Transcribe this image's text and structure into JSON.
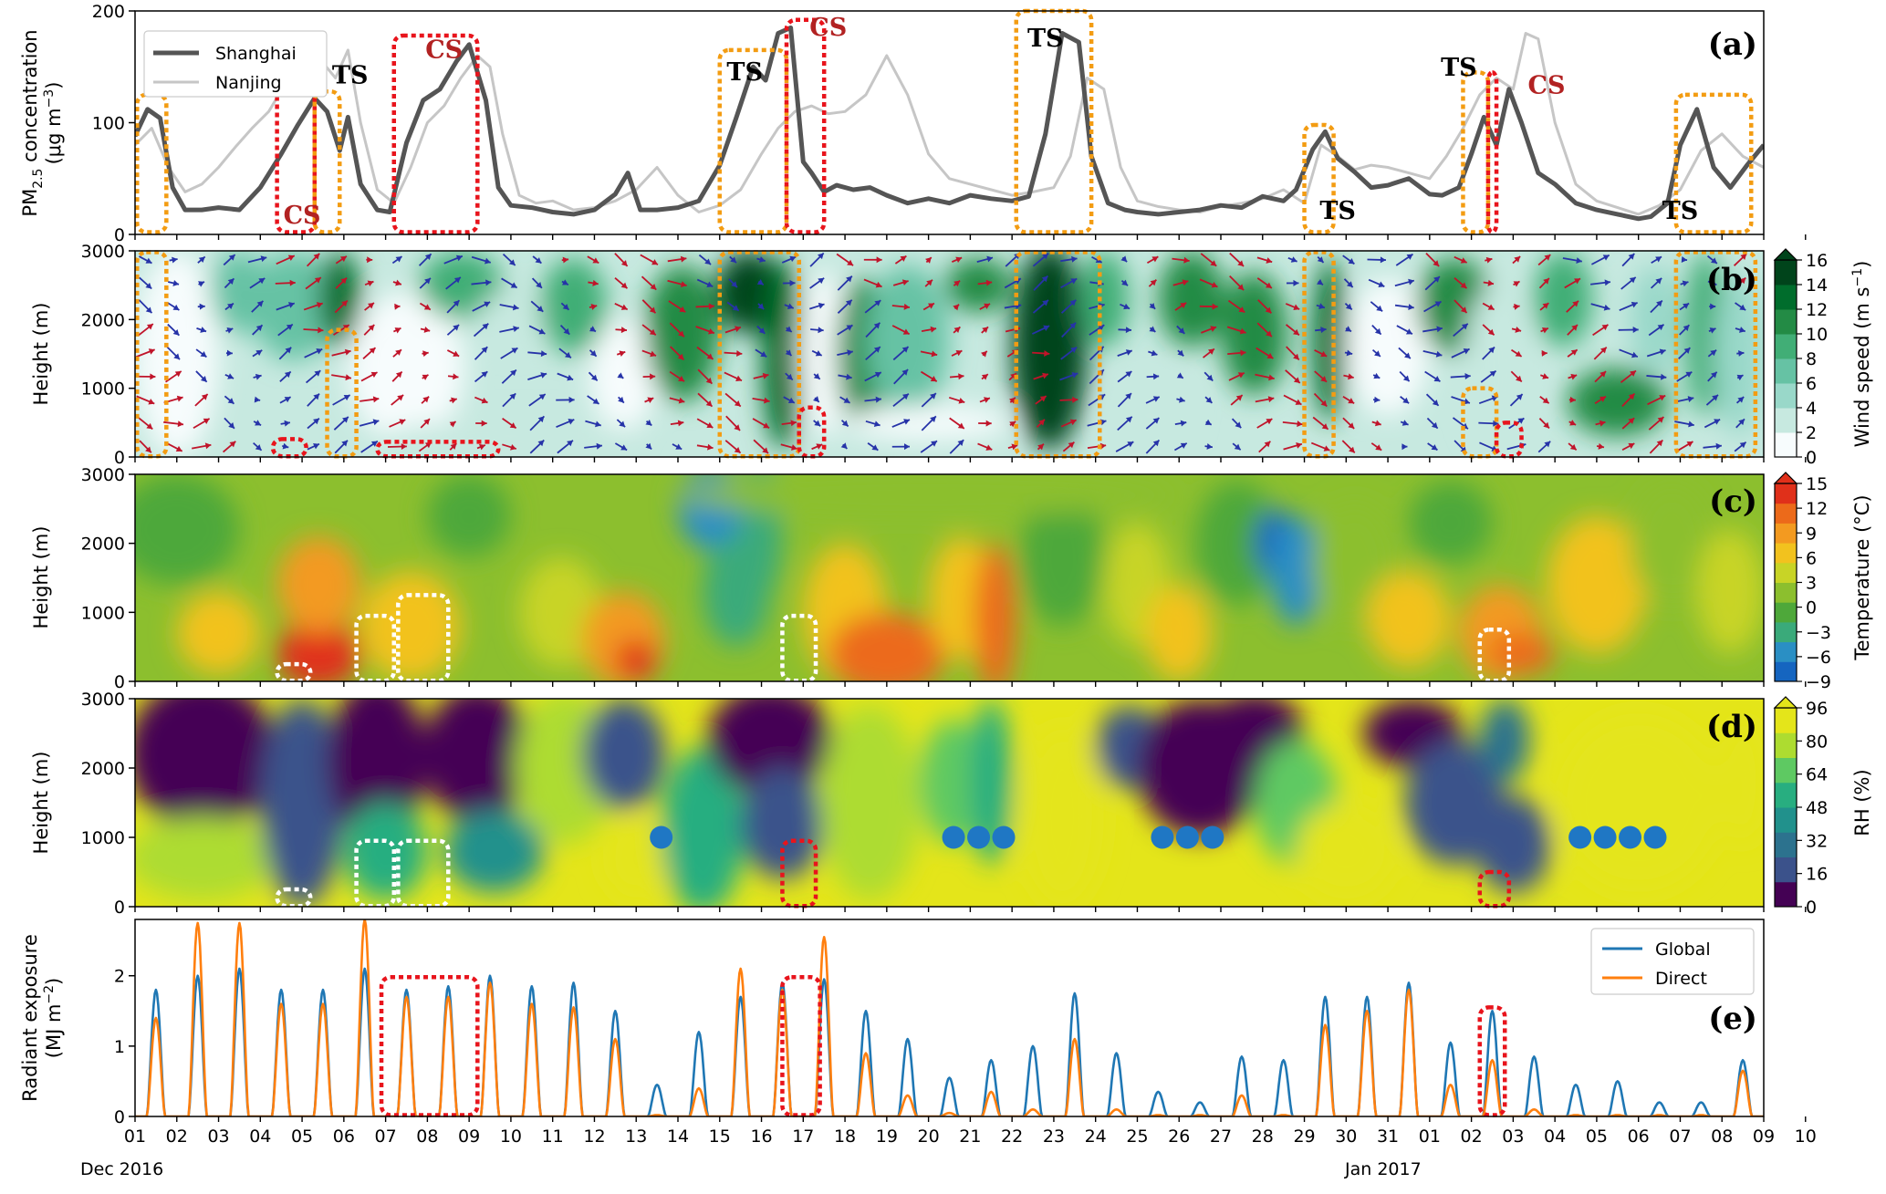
{
  "chart_data": [
    {
      "panel": "a",
      "panel_label": "(a)",
      "type": "line",
      "ylabel": "PM2.5 concentration (μg m−3)",
      "ylabel_line1": "PM",
      "ylabel_sub": "2.5",
      "ylabel_line1_rest": " concentration",
      "ylabel_line2": "(μg m",
      "ylabel_line2_sup": "−3",
      "ylabel_line2_end": ")",
      "ylim": [
        0,
        200
      ],
      "yticks": [
        "0",
        "100",
        "200"
      ],
      "legend_position": "top-left",
      "series": [
        {
          "name": "Shanghai",
          "color": "#555555",
          "x": [
            1.0,
            1.3,
            1.6,
            1.9,
            2.2,
            2.6,
            3.0,
            3.5,
            4.0,
            4.5,
            4.9,
            5.3,
            5.6,
            5.9,
            6.1,
            6.4,
            6.8,
            7.1,
            7.5,
            7.9,
            8.3,
            8.7,
            9.0,
            9.4,
            9.7,
            10.0,
            10.5,
            11.0,
            11.5,
            12.0,
            12.5,
            12.8,
            13.1,
            13.5,
            14.0,
            14.5,
            15.0,
            15.4,
            15.8,
            16.1,
            16.4,
            16.7,
            17.0,
            17.2,
            17.5,
            17.8,
            18.2,
            18.6,
            19.0,
            19.5,
            20.0,
            20.5,
            21.0,
            21.5,
            22.0,
            22.4,
            22.8,
            23.2,
            23.6,
            23.9,
            24.3,
            24.7,
            25.0,
            25.5,
            26.0,
            26.5,
            27.0,
            27.5,
            28.0,
            28.5,
            28.8,
            29.2,
            29.5,
            29.8,
            30.2,
            30.6,
            31.0,
            31.5,
            32.0,
            32.3,
            32.7,
            33.0,
            33.3,
            33.6,
            33.9,
            34.2,
            34.6,
            35.0,
            35.5,
            36.0,
            36.5,
            37.0,
            37.3,
            37.7,
            38.0,
            38.4,
            38.8,
            39.2,
            39.6,
            40.0
          ],
          "values": [
            88,
            112,
            104,
            42,
            22,
            22,
            24,
            22,
            42,
            72,
            98,
            122,
            110,
            75,
            105,
            45,
            22,
            20,
            82,
            120,
            130,
            155,
            170,
            120,
            42,
            26,
            24,
            20,
            18,
            22,
            36,
            55,
            22,
            22,
            24,
            30,
            62,
            105,
            150,
            138,
            180,
            185,
            65,
            55,
            38,
            44,
            40,
            42,
            35,
            28,
            32,
            28,
            35,
            32,
            30,
            34,
            90,
            180,
            172,
            70,
            28,
            22,
            20,
            18,
            20,
            22,
            26,
            24,
            34,
            30,
            40,
            76,
            92,
            68,
            56,
            42,
            44,
            50,
            36,
            35,
            42,
            72,
            105,
            80,
            130,
            100,
            55,
            45,
            28,
            22,
            18,
            14,
            16,
            28,
            80,
            112,
            60,
            42,
            62,
            80
          ]
        },
        {
          "name": "Nanjing",
          "color": "#c6c6c6",
          "x": [
            1.0,
            1.4,
            1.8,
            2.2,
            2.6,
            3.0,
            3.4,
            3.8,
            4.2,
            4.6,
            5.0,
            5.4,
            5.8,
            6.1,
            6.4,
            6.8,
            7.2,
            7.6,
            8.0,
            8.4,
            8.8,
            9.2,
            9.5,
            9.8,
            10.2,
            10.6,
            11.0,
            11.5,
            12.0,
            12.5,
            13.0,
            13.5,
            14.0,
            14.5,
            15.0,
            15.5,
            16.0,
            16.4,
            16.8,
            17.2,
            17.6,
            18.0,
            18.5,
            19.0,
            19.5,
            20.0,
            20.5,
            21.0,
            21.5,
            22.0,
            22.5,
            23.0,
            23.4,
            23.8,
            24.2,
            24.6,
            25.0,
            25.5,
            26.0,
            26.5,
            27.0,
            27.5,
            28.0,
            28.5,
            29.0,
            29.4,
            29.8,
            30.2,
            30.6,
            31.0,
            31.5,
            32.0,
            32.4,
            32.8,
            33.2,
            33.6,
            34.0,
            34.3,
            34.6,
            35.0,
            35.5,
            36.0,
            36.5,
            37.0,
            37.5,
            38.0,
            38.5,
            39.0,
            39.5,
            40.0
          ],
          "values": [
            80,
            95,
            60,
            38,
            45,
            60,
            78,
            95,
            110,
            135,
            150,
            158,
            140,
            165,
            100,
            40,
            28,
            60,
            100,
            115,
            140,
            160,
            150,
            90,
            35,
            28,
            30,
            22,
            24,
            30,
            40,
            60,
            35,
            20,
            26,
            40,
            72,
            95,
            110,
            115,
            108,
            110,
            125,
            160,
            125,
            72,
            50,
            45,
            40,
            35,
            38,
            42,
            70,
            140,
            130,
            60,
            30,
            25,
            22,
            20,
            25,
            28,
            32,
            40,
            28,
            80,
            70,
            58,
            62,
            60,
            55,
            50,
            70,
            95,
            125,
            140,
            130,
            180,
            175,
            100,
            45,
            30,
            24,
            18,
            26,
            40,
            75,
            90,
            70,
            60
          ]
        }
      ],
      "annotations": [
        {
          "text": "TS",
          "x": 1.65,
          "y": 133,
          "color": "#000000"
        },
        {
          "text": "CS",
          "x": 5.0,
          "y": 10,
          "color": "#b22222"
        },
        {
          "text": "TS",
          "x": 6.15,
          "y": 135,
          "color": "#000000"
        },
        {
          "text": "CS",
          "x": 8.4,
          "y": 158,
          "color": "#b22222"
        },
        {
          "text": "TS",
          "x": 15.6,
          "y": 138,
          "color": "#000000"
        },
        {
          "text": "CS",
          "x": 17.6,
          "y": 178,
          "color": "#b22222"
        },
        {
          "text": "TS",
          "x": 22.8,
          "y": 168,
          "color": "#000000"
        },
        {
          "text": "TS",
          "x": 29.8,
          "y": 14,
          "color": "#000000"
        },
        {
          "text": "TS",
          "x": 32.7,
          "y": 142,
          "color": "#000000"
        },
        {
          "text": "CS",
          "x": 34.8,
          "y": 126,
          "color": "#b22222"
        },
        {
          "text": "TS",
          "x": 38.0,
          "y": 14,
          "color": "#000000"
        }
      ]
    },
    {
      "panel": "b",
      "panel_label": "(b)",
      "type": "heatmap",
      "ylabel": "Height (m)",
      "ylim": [
        0,
        3000
      ],
      "yticks": [
        "0",
        "1000",
        "2000",
        "3000"
      ],
      "colorbar_label": "Wind speed (m s",
      "colorbar_label_sup": "−1",
      "colorbar_label_end": ")",
      "colorbar_ticks": [
        "0",
        "2",
        "4",
        "6",
        "8",
        "10",
        "12",
        "14",
        "16"
      ],
      "colors": [
        "#f7fcfd",
        "#c7e9e0",
        "#99d8c9",
        "#66c2a4",
        "#41ae76",
        "#238b45",
        "#006d2c",
        "#00441b"
      ],
      "arrow_colors": {
        "southward": "#2633a8",
        "northward": "#c0142a"
      }
    },
    {
      "panel": "c",
      "panel_label": "(c)",
      "type": "heatmap",
      "ylabel": "Height (m)",
      "ylim": [
        0,
        3000
      ],
      "yticks": [
        "0",
        "1000",
        "2000",
        "3000"
      ],
      "colorbar_label": "Temperature (°C)",
      "colorbar_ticks": [
        "−9",
        "−6",
        "−3",
        "0",
        "3",
        "6",
        "9",
        "12",
        "15"
      ],
      "colors": [
        "#1565c0",
        "#2a8fc4",
        "#3aaa7a",
        "#4ea83a",
        "#8cbf2e",
        "#c8d426",
        "#f2c21e",
        "#f39a20",
        "#ec6a1a",
        "#e0301a"
      ]
    },
    {
      "panel": "d",
      "panel_label": "(d)",
      "type": "heatmap",
      "ylabel": "Height (m)",
      "ylim": [
        0,
        3000
      ],
      "yticks": [
        "0",
        "1000",
        "2000",
        "3000"
      ],
      "colorbar_label": "RH (%)",
      "colorbar_ticks": [
        "0",
        "16",
        "32",
        "48",
        "64",
        "80",
        "96"
      ],
      "colors": [
        "#440154",
        "#3b528b",
        "#2c728e",
        "#21918c",
        "#28ae80",
        "#5ec962",
        "#addc30",
        "#e4e51a"
      ],
      "markers": {
        "color": "#1f77c4",
        "y": 1000,
        "x": [
          13.6,
          20.6,
          21.2,
          21.8,
          25.6,
          26.2,
          26.8,
          35.6,
          36.2,
          36.8,
          37.4
        ]
      }
    },
    {
      "panel": "e",
      "panel_label": "(e)",
      "type": "line",
      "ylabel": "Radiant exposure (MJ m−2)",
      "ylabel_line1": "Radiant exposure",
      "ylabel_line2": "(MJ m",
      "ylabel_line2_sup": "−2",
      "ylabel_line2_end": ")",
      "ylim": [
        0,
        2.8
      ],
      "yticks": [
        "0",
        "1",
        "2"
      ],
      "legend_position": "top-right",
      "series": [
        {
          "name": "Global",
          "color": "#1f77b4",
          "peak_x": [
            1.5,
            2.5,
            3.5,
            4.5,
            5.5,
            6.5,
            7.5,
            8.5,
            9.5,
            10.5,
            11.5,
            12.5,
            13.5,
            14.5,
            15.5,
            16.5,
            17.5,
            18.5,
            19.5,
            20.5,
            21.5,
            22.5,
            23.5,
            24.5,
            25.5,
            26.5,
            27.5,
            28.5,
            29.5,
            30.5,
            31.5,
            32.5,
            33.5,
            34.5,
            35.5,
            36.5,
            37.5,
            38.5,
            39.5
          ],
          "values": [
            1.8,
            2.0,
            2.1,
            1.8,
            1.8,
            2.1,
            1.8,
            1.85,
            2.0,
            1.85,
            1.9,
            1.5,
            0.45,
            1.2,
            1.7,
            1.9,
            1.95,
            1.5,
            1.1,
            0.55,
            0.8,
            1.0,
            1.75,
            0.9,
            0.35,
            0.2,
            0.85,
            0.8,
            1.7,
            1.7,
            1.9,
            1.05,
            1.5,
            0.85,
            0.45,
            0.5,
            0.2,
            0.2,
            0.8
          ]
        },
        {
          "name": "Direct",
          "color": "#ff7f0e",
          "peak_x": [
            1.5,
            2.5,
            3.5,
            4.5,
            5.5,
            6.5,
            7.5,
            8.5,
            9.5,
            10.5,
            11.5,
            12.5,
            13.5,
            14.5,
            15.5,
            16.5,
            17.5,
            18.5,
            19.5,
            20.5,
            21.5,
            22.5,
            23.5,
            24.5,
            25.5,
            26.5,
            27.5,
            28.5,
            29.5,
            30.5,
            31.5,
            32.5,
            33.5,
            34.5,
            35.5,
            36.5,
            37.5,
            38.5,
            39.5
          ],
          "values": [
            1.4,
            2.75,
            2.75,
            1.6,
            1.6,
            2.8,
            1.7,
            1.7,
            1.9,
            1.6,
            1.55,
            1.1,
            0.02,
            0.4,
            2.1,
            1.8,
            2.55,
            0.9,
            0.3,
            0.05,
            0.35,
            0.1,
            1.1,
            0.1,
            0.02,
            0.02,
            0.3,
            0.02,
            1.3,
            1.5,
            1.8,
            0.45,
            0.8,
            0.1,
            0.02,
            0.02,
            0.02,
            0.02,
            0.65
          ]
        }
      ]
    }
  ],
  "xaxis": {
    "tick_labels": [
      "01",
      "02",
      "03",
      "04",
      "05",
      "06",
      "07",
      "08",
      "09",
      "10",
      "11",
      "12",
      "13",
      "14",
      "15",
      "16",
      "17",
      "18",
      "19",
      "20",
      "21",
      "22",
      "23",
      "24",
      "25",
      "26",
      "27",
      "28",
      "29",
      "30",
      "31",
      "01",
      "02",
      "03",
      "04",
      "05",
      "06",
      "07",
      "08",
      "09",
      "10"
    ],
    "month_labels": [
      "Dec  2016",
      "Jan  2017"
    ]
  },
  "boxes": {
    "orange": "#f39c12",
    "red": "#e8141c",
    "white": "#ffffff"
  }
}
